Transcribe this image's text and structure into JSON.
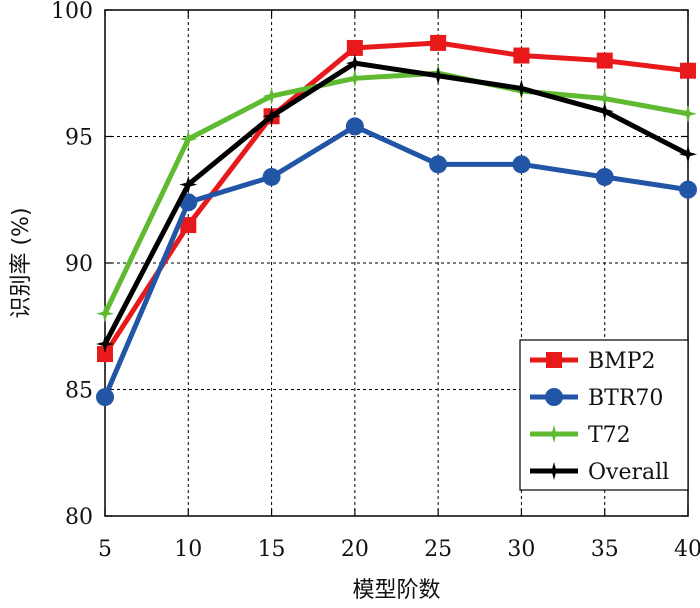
{
  "chart_data": {
    "type": "line",
    "title": "",
    "xlabel": "模型阶数",
    "ylabel": "识别率 (%)",
    "x": [
      5,
      10,
      15,
      20,
      25,
      30,
      35,
      40
    ],
    "xlim": [
      5,
      40
    ],
    "ylim": [
      80,
      100
    ],
    "xticks": [
      "5",
      "10",
      "15",
      "20",
      "25",
      "30",
      "35",
      "40"
    ],
    "yticks": [
      "80",
      "85",
      "90",
      "95",
      "100"
    ],
    "grid": true,
    "legend_position": "bottom-right",
    "series": [
      {
        "name": "BMP2",
        "color": "#e8191a",
        "marker": "square",
        "values": [
          86.4,
          91.5,
          95.8,
          98.5,
          98.7,
          98.2,
          98.0,
          97.6
        ]
      },
      {
        "name": "BTR70",
        "color": "#2255a5",
        "marker": "circle",
        "values": [
          84.7,
          92.4,
          93.4,
          95.4,
          93.9,
          93.9,
          93.4,
          92.9
        ]
      },
      {
        "name": "T72",
        "color": "#5fba31",
        "marker": "star",
        "values": [
          88.0,
          94.9,
          96.6,
          97.3,
          97.5,
          96.8,
          96.5,
          95.9
        ]
      },
      {
        "name": "Overall",
        "color": "#000000",
        "marker": "star",
        "values": [
          86.8,
          93.1,
          95.8,
          97.9,
          97.4,
          96.9,
          96.0,
          94.3
        ]
      }
    ]
  }
}
